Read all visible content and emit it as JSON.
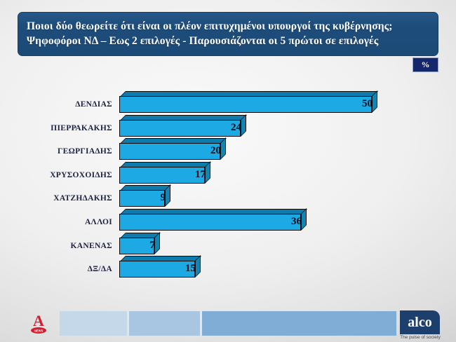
{
  "header": {
    "title_line1": "Ποιοι δύο θεωρείτε ότι είναι οι πλέον επιτυχημένοι υπουργοί της κυβέρνησης;",
    "title_line2": "Ψηφοφόροι ΝΔ – Εως 2 επιλογές - Παρουσιάζονται οι 5 πρώτοι σε επιλογές"
  },
  "percent_badge": "%",
  "chart_data": {
    "type": "bar",
    "orientation": "horizontal",
    "title": "Ποιοι δύο θεωρείτε ότι είναι οι πλέον επιτυχημένοι υπουργοί της κυβέρνησης; Ψηφοφόροι ΝΔ – Εως 2 επιλογές - Παρουσιάζονται οι 5 πρώτοι σε επιλογές",
    "unit": "%",
    "categories": [
      "ΔΕΝΔΙΑΣ",
      "ΠΙΕΡΡΑΚΑΚΗΣ",
      "ΓΕΩΡΓΙΑΔΗΣ",
      "ΧΡΥΣΟΧΟΙΔΗΣ",
      "ΧΑΤΖΗΔΑΚΗΣ",
      "ΑΛΛΟΙ",
      "ΚΑΝΕΝΑΣ",
      "ΔΞ/ΔΑ"
    ],
    "values": [
      50,
      24,
      20,
      17,
      9,
      36,
      7,
      15
    ],
    "xlim": [
      0,
      63
    ],
    "grid": false,
    "legend": false,
    "value_labels": "inside-right",
    "bar_style_3d": true
  },
  "colors": {
    "title_bg": "#1e4d7b",
    "bar_front": "#1ca9e4",
    "bar_top": "#0d7bab",
    "bar_side": "#1185b4",
    "bar_outline": "#0a0a0a",
    "label_text": "#1a2240",
    "badge_bg": "#16266c",
    "footer_cells": [
      "#d5e2ef",
      "#c5d8ea",
      "#a8c6e1",
      "#7fadd6"
    ],
    "alco_bg": "#1d3f6e",
    "alpha_red": "#d01f2f"
  },
  "footer": {
    "alpha_logo": {
      "letter": "A",
      "news_label": "NEWS"
    },
    "alco": {
      "name": "alco",
      "tagline": "The pulse of society"
    }
  }
}
